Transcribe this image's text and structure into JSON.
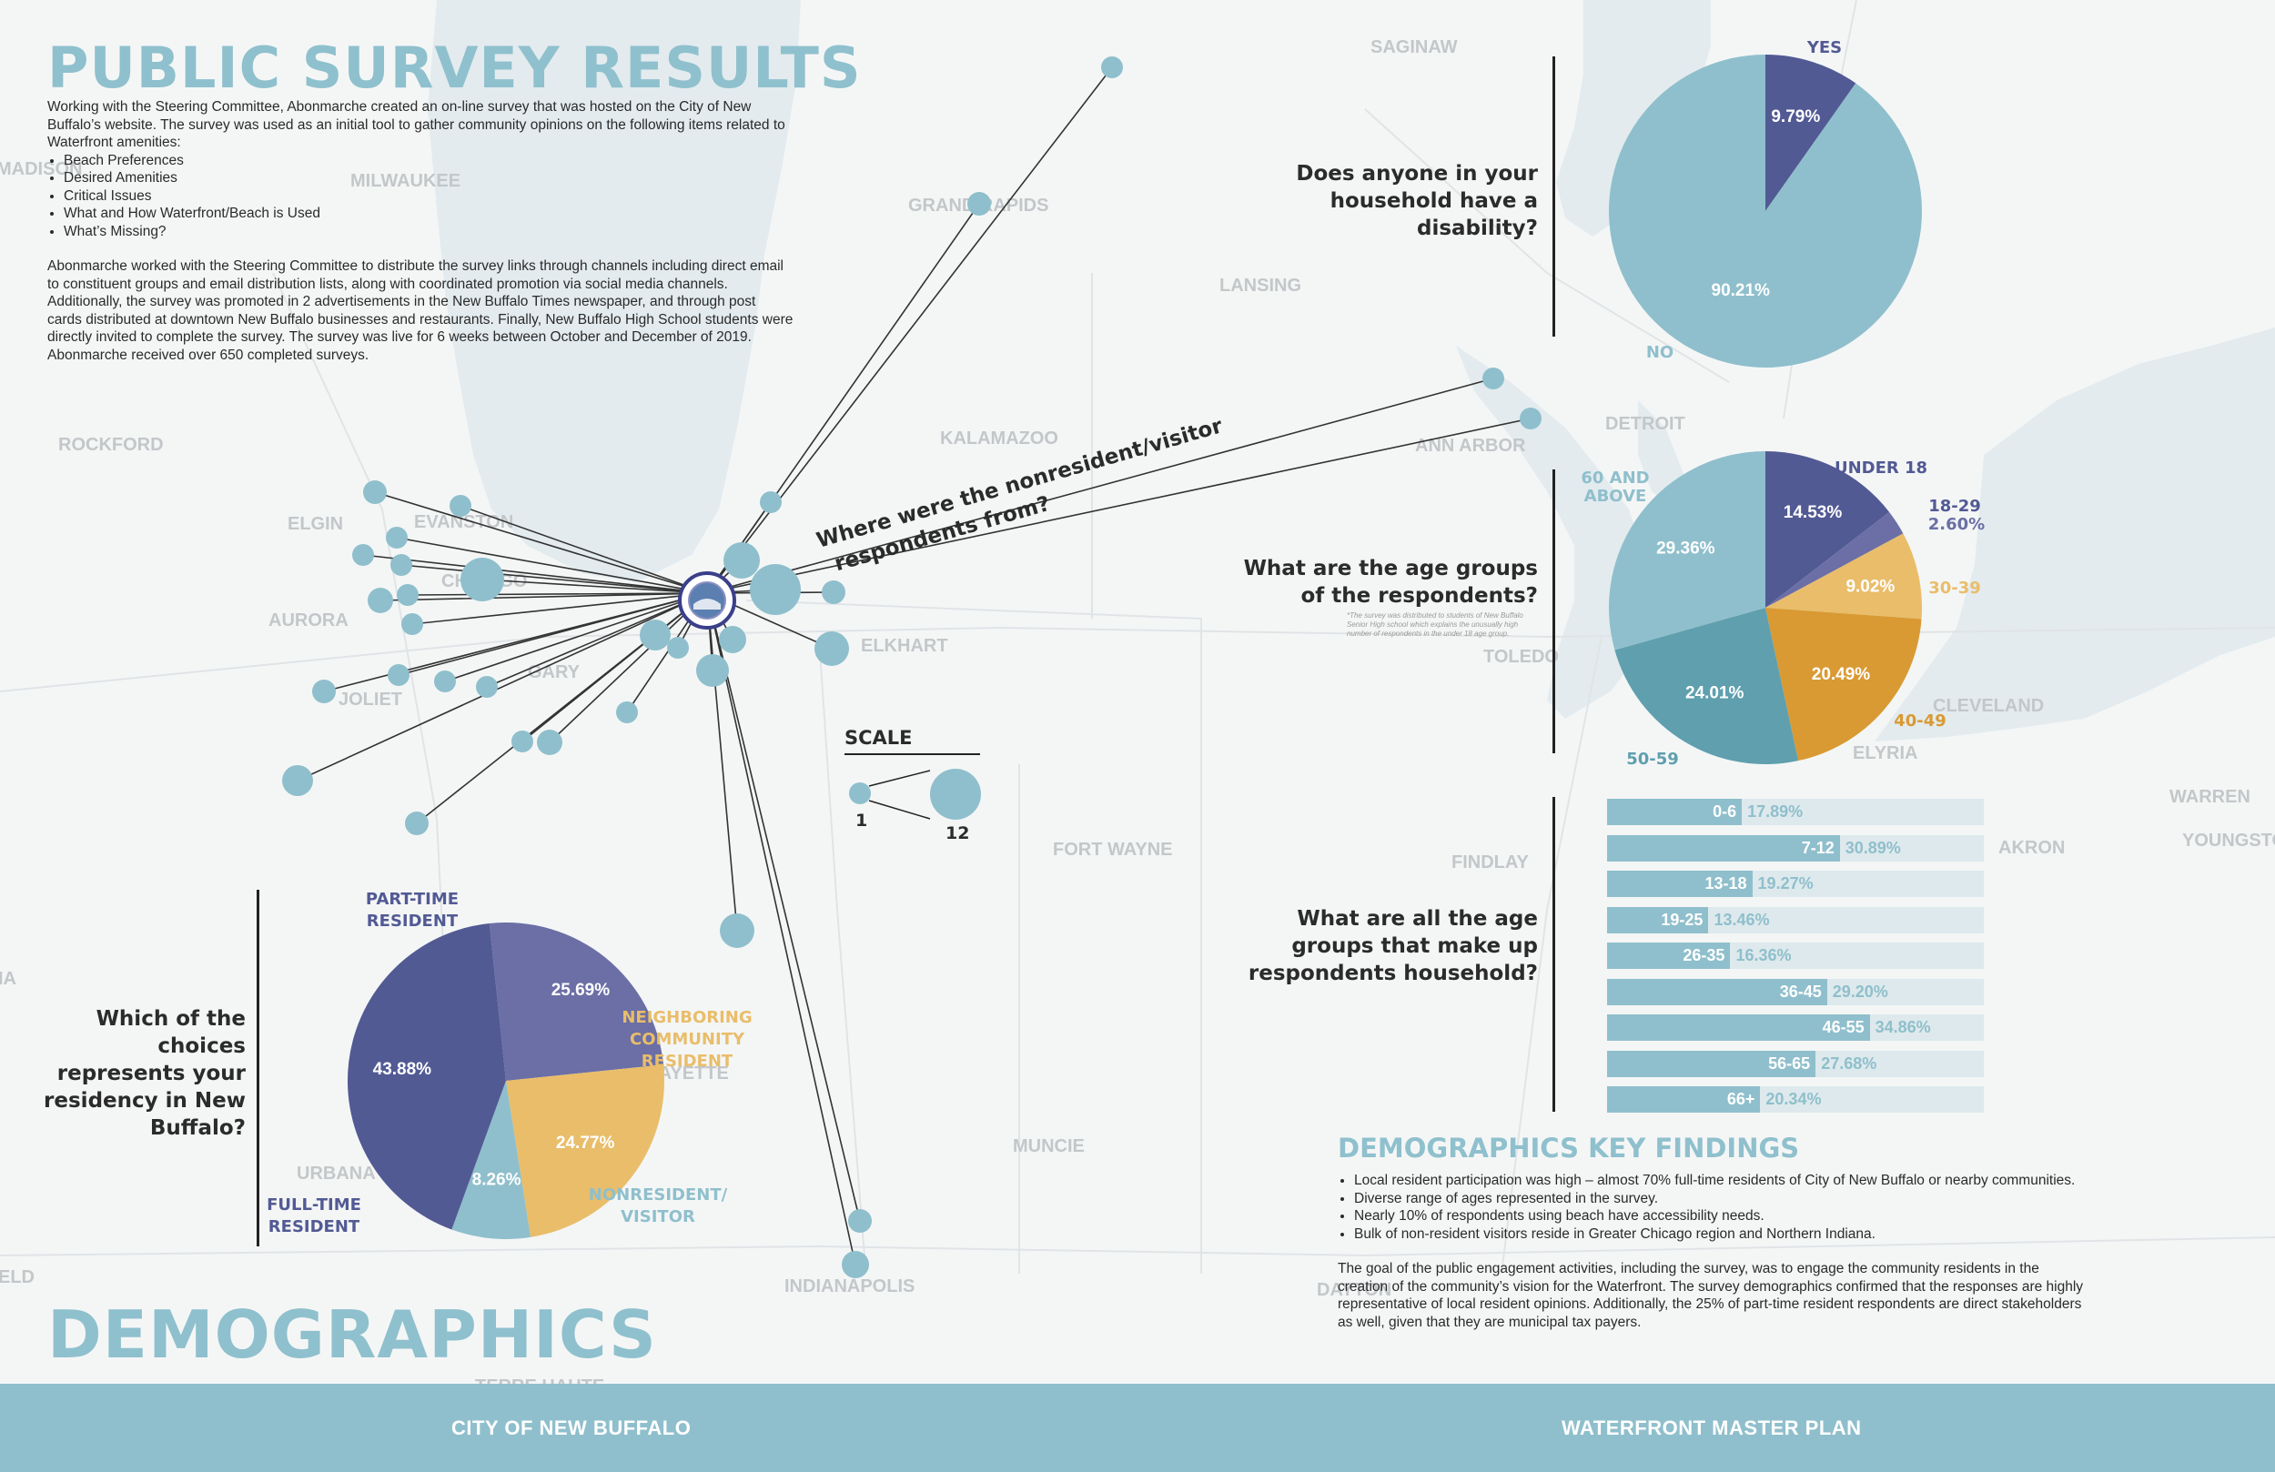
{
  "page": {
    "survey_title": "PUBLIC SURVEY RESULTS",
    "intro_paragraph_1": "Working with the Steering Committee, Abonmarche created an on-line survey that was hosted on the City of New Buffalo’s website. The survey was used as an initial tool to gather community opinions on the following items related to Waterfront amenities:",
    "intro_bullets": [
      "Beach Preferences",
      "Desired Amenities",
      "Critical Issues",
      "What and How Waterfront/Beach is Used",
      "What’s Missing?"
    ],
    "intro_paragraph_2": "Abonmarche worked with the Steering Committee to distribute the survey links through channels including direct email to constituent groups and email distribution lists, along with coordinated promotion via social media channels. Additionally, the survey was promoted in 2 advertisements in the New Buffalo Times newspaper, and through post cards distributed at downtown New Buffalo businesses and restaurants. Finally, New Buffalo High School students were directly invited to complete the survey. The survey was live for 6 weeks between October and December of 2019. Abonmarche received over 650 completed surveys.",
    "demographics_title": "DEMOGRAPHICS",
    "footer_left": "CITY OF NEW BUFFALO",
    "footer_right": "WATERFRONT MASTER PLAN",
    "colors": {
      "light_blue": "#8fbfcc",
      "navy": "#525a94",
      "slate": "#6b6fa5",
      "gold": "#e9bd6a",
      "teal": "#5f9fae",
      "orange": "#d99a33"
    }
  },
  "map": {
    "city_labels": [
      "SAGINAW",
      "MADISON",
      "MILWAUKEE",
      "GRAND RAPIDS",
      "LANSING",
      "DETROIT",
      "ANN ARBOR",
      "KALAMAZOO",
      "ROCKFORD",
      "ELGIN",
      "EVANSTON",
      "CHICAGO",
      "AURORA",
      "JOLIET",
      "GARY",
      "ELKHART",
      "TOLEDO",
      "CLEVELAND",
      "ELYRIA",
      "WARREN",
      "YOUNGSTOWN",
      "AKRON",
      "FORT WAYNE",
      "FINDLAY",
      "LAFAYETTE",
      "MUNCIE",
      "URBANA",
      "INDIANAPOLIS",
      "DAYTON",
      "TERRE HAUTE",
      "IA",
      "ELD"
    ],
    "question": "Where were the nonresident/visitor respondents from?",
    "question_line1": "Where were the nonresident/visitor",
    "question_line2": "respondents from?",
    "scale_title": "SCALE",
    "scale_min": "1",
    "scale_max": "12"
  },
  "chart_data": [
    {
      "type": "pie",
      "title": "Does anyone in your household have a disability?",
      "categories": [
        "YES",
        "NO"
      ],
      "values": [
        9.79,
        90.21
      ],
      "data_labels": [
        "9.79%",
        "90.21%"
      ],
      "colors": [
        "#525a94",
        "#8fbfcc"
      ]
    },
    {
      "type": "pie",
      "title": "What are the age groups of the respondents?",
      "note": "*The survey was distributed to students of New Buffalo Senior High school which explains the unusually high number of respondents in the under 18 age group.",
      "categories": [
        "UNDER 18",
        "18-29",
        "30-39",
        "40-49",
        "50-59",
        "60 AND ABOVE"
      ],
      "values": [
        14.53,
        2.6,
        9.02,
        20.49,
        24.01,
        29.36
      ],
      "data_labels": [
        "14.53%",
        "2.60%",
        "9.02%",
        "20.49%",
        "24.01%",
        "29.36%"
      ],
      "colors": [
        "#525a94",
        "#6b6fa5",
        "#e9bd6a",
        "#d99a33",
        "#5f9fae",
        "#8fbfcc"
      ]
    },
    {
      "type": "bar",
      "orientation": "horizontal",
      "title": "What are all the age groups that make up respondents household?",
      "categories": [
        "0-6",
        "7-12",
        "13-18",
        "19-25",
        "26-35",
        "36-45",
        "46-55",
        "56-65",
        "66+"
      ],
      "values": [
        17.89,
        30.89,
        19.27,
        13.46,
        16.36,
        29.2,
        34.86,
        27.68,
        20.34
      ],
      "data_labels": [
        "17.89%",
        "30.89%",
        "19.27%",
        "13.46%",
        "16.36%",
        "29.20%",
        "34.86%",
        "27.68%",
        "20.34%"
      ]
    },
    {
      "type": "pie",
      "title": "Which of the choices represents your residency in New Buffalo?",
      "categories": [
        "PART-TIME RESIDENT",
        "NEIGHBORING COMMUNITY RESIDENT",
        "NONRESIDENT/ VISITOR",
        "FULL-TIME RESIDENT"
      ],
      "values": [
        25.69,
        24.77,
        8.26,
        43.88
      ],
      "data_labels": [
        "25.69%",
        "24.77%",
        "8.26%",
        "43.88%"
      ],
      "colors": [
        "#6b6fa5",
        "#e9bd6a",
        "#8fbfcc",
        "#525a94"
      ]
    }
  ],
  "questions": {
    "disability": "Does anyone in your household have a disability?",
    "age": "What are the age groups of the respondents?",
    "household": "What are all the age groups that make up respondents household?",
    "residency": "Which of the choices represents your residency in New Buffalo?"
  },
  "findings": {
    "title": "DEMOGRAPHICS KEY FINDINGS",
    "bullets": [
      "Local resident participation was high – almost 70% full-time residents of City of New Buffalo or nearby communities.",
      "Diverse range of ages represented in the survey.",
      "Nearly 10% of respondents using beach have accessibility needs.",
      "Bulk of non-resident visitors reside in Greater Chicago region and Northern Indiana."
    ],
    "paragraph": "The goal of the public engagement activities, including the survey, was to engage the community residents in the creation of the community’s vision for the Waterfront. The survey demographics confirmed that the responses are highly representative of local resident opinions. Additionally, the 25% of part-time resident respondents are direct stakeholders as well, given that they are municipal tax payers."
  }
}
